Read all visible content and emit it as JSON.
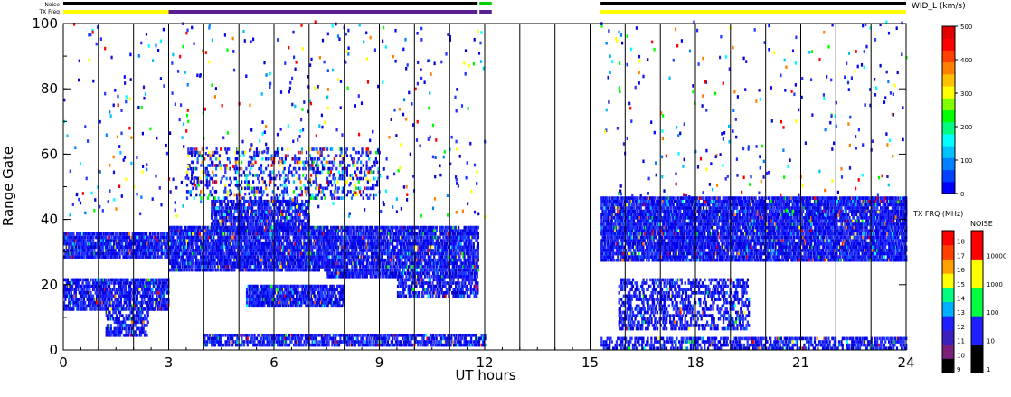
{
  "chart_data": {
    "type": "heatmap",
    "title": "",
    "xlabel": "UT hours",
    "ylabel": "Range Gate",
    "xlim": [
      0,
      24
    ],
    "ylim": [
      0,
      100
    ],
    "x_ticks": [
      "0",
      "3",
      "6",
      "9",
      "12",
      "15",
      "18",
      "21",
      "24"
    ],
    "y_ticks": [
      "0",
      "20",
      "40",
      "60",
      "80",
      "100"
    ],
    "vertical_gridlines_hours": [
      0,
      1,
      2,
      3,
      4,
      5,
      6,
      7,
      8,
      9,
      10,
      11,
      12,
      13,
      14,
      15,
      16,
      17,
      18,
      19,
      20,
      21,
      22,
      23,
      24
    ],
    "data_gap_hours": [
      12,
      15.3
    ],
    "bands": [
      {
        "t0": 0,
        "t1": 3,
        "g0": 28,
        "g1": 36,
        "density": 0.85
      },
      {
        "t0": 0,
        "t1": 3,
        "g0": 12,
        "g1": 22,
        "density": 0.75
      },
      {
        "t0": 1.2,
        "t1": 2.4,
        "g0": 4,
        "g1": 12,
        "density": 0.6
      },
      {
        "t0": 3,
        "t1": 7.5,
        "g0": 24,
        "g1": 38,
        "density": 0.85
      },
      {
        "t0": 4.2,
        "t1": 7,
        "g0": 36,
        "g1": 46,
        "density": 0.7
      },
      {
        "t0": 5.2,
        "t1": 8,
        "g0": 13,
        "g1": 20,
        "density": 0.8
      },
      {
        "t0": 4,
        "t1": 12,
        "g0": 1,
        "g1": 5,
        "density": 0.7
      },
      {
        "t0": 7.5,
        "t1": 11.8,
        "g0": 22,
        "g1": 38,
        "density": 0.8
      },
      {
        "t0": 9.5,
        "t1": 11.8,
        "g0": 16,
        "g1": 22,
        "density": 0.55
      },
      {
        "t0": 15.3,
        "t1": 24,
        "g0": 27,
        "g1": 47,
        "density": 0.85
      },
      {
        "t0": 15.8,
        "t1": 19.5,
        "g0": 6,
        "g1": 22,
        "density": 0.45
      },
      {
        "t0": 15.3,
        "t1": 24,
        "g0": 0,
        "g1": 4,
        "density": 0.55
      },
      {
        "t0": 3.5,
        "t1": 9,
        "g0": 46,
        "g1": 62,
        "density": 0.25
      }
    ],
    "velocity_scale": {
      "label": "WID_L (km/s)",
      "min": 0,
      "max": 500,
      "ticks": [
        "0",
        "100",
        "200",
        "300",
        "400",
        "500"
      ],
      "colors": [
        "#0000ff",
        "#0040ff",
        "#0080ff",
        "#00c0ff",
        "#00ffff",
        "#00ff80",
        "#00ff00",
        "#80ff00",
        "#ffff00",
        "#ffc000",
        "#ff8000",
        "#ff4000",
        "#ff0000",
        "#e00000"
      ]
    },
    "tx_freq_scale": {
      "label": "TX FRQ (MHz)",
      "ticks": [
        "9",
        "10",
        "11",
        "12",
        "13",
        "14",
        "15",
        "16",
        "17",
        "18"
      ],
      "colors": [
        "#000000",
        "#7a1f7a",
        "#3b1fbf",
        "#2020ff",
        "#00b0ff",
        "#00ff80",
        "#ffff00",
        "#ffa000",
        "#ff4000",
        "#ff0000"
      ]
    },
    "noise_scale": {
      "label": "NOISE",
      "ticks": [
        "1",
        "10",
        "100",
        "1000",
        "10000"
      ],
      "colors": [
        "#000000",
        "#2020ff",
        "#00ff40",
        "#ffff00",
        "#ff0000"
      ]
    },
    "status_bars": {
      "noise_label": "Noise",
      "txfreq_label": "TX Freq",
      "noise_segments": [
        {
          "t0": 0,
          "t1": 11.8,
          "color": "#000000"
        },
        {
          "t0": 11.85,
          "t1": 12.2,
          "color": "#00d000"
        },
        {
          "t0": 15.3,
          "t1": 24,
          "color": "#000000"
        }
      ],
      "txfreq_segments": [
        {
          "t0": 0,
          "t1": 3,
          "color": "#ffff00"
        },
        {
          "t0": 3,
          "t1": 11.8,
          "color": "#5a1f8f"
        },
        {
          "t0": 11.85,
          "t1": 12.2,
          "color": "#5a1f8f"
        },
        {
          "t0": 15.3,
          "t1": 24,
          "color": "#ffff00"
        }
      ]
    }
  }
}
